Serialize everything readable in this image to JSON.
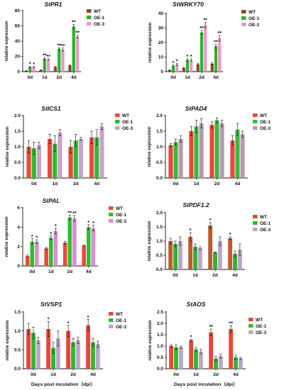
{
  "chart_data": [
    {
      "type": "bar",
      "title": "StPR1",
      "ylabel": "relative expression",
      "xlabel": "",
      "categories": [
        "0d",
        "1d",
        "2d",
        "4d"
      ],
      "ylim": [
        0,
        80
      ],
      "yticks": [
        "0",
        "20",
        "40",
        "60",
        "80"
      ],
      "legend": "right",
      "series": [
        {
          "name": "WT",
          "color": "#8b4a2b",
          "values": [
            1,
            2,
            6,
            8
          ],
          "errors": [
            0.5,
            0.5,
            0.8,
            0.8
          ],
          "marks": [
            "",
            "",
            "",
            ""
          ]
        },
        {
          "name": "OE-1",
          "color": "#2fb12f",
          "values": [
            6,
            17,
            30,
            59
          ],
          "errors": [
            1,
            1.5,
            1.5,
            3
          ],
          "marks": [
            "*",
            "**",
            "**",
            "**"
          ]
        },
        {
          "name": "OE-3",
          "color": "#e79ac0",
          "values": [
            6,
            16,
            29,
            46
          ],
          "errors": [
            0.8,
            1,
            2,
            2
          ],
          "marks": [
            "*",
            "**",
            "**",
            "**"
          ]
        }
      ]
    },
    {
      "type": "bar",
      "title": "StWRKY70",
      "ylabel": "relative expression",
      "xlabel": "",
      "categories": [
        "0d",
        "1d",
        "2d",
        "4d"
      ],
      "ylim": [
        0,
        40
      ],
      "yticks": [
        "0",
        "10",
        "20",
        "30",
        "40"
      ],
      "legend": "right",
      "series": [
        {
          "name": "WT",
          "color": "#8b4a2b",
          "values": [
            1,
            2.5,
            5,
            5.5
          ],
          "errors": [
            0.3,
            0.5,
            0.6,
            0.8
          ],
          "marks": [
            "",
            "",
            "",
            ""
          ]
        },
        {
          "name": "OE-1",
          "color": "#2fb12f",
          "values": [
            4,
            8,
            27,
            17.5
          ],
          "errors": [
            0.6,
            0.8,
            1.5,
            1.5
          ],
          "marks": [
            "*",
            "*",
            "**",
            "**"
          ]
        },
        {
          "name": "OE-3",
          "color": "#e79ac0",
          "values": [
            5,
            8,
            32,
            23
          ],
          "errors": [
            0.8,
            0.8,
            2,
            2
          ],
          "marks": [
            "*",
            "*",
            "**",
            "**"
          ]
        }
      ]
    },
    {
      "type": "bar",
      "title": "StICS1",
      "ylabel": "relative expression",
      "xlabel": "",
      "categories": [
        "0d",
        "1d",
        "2d",
        "4d"
      ],
      "ylim": [
        0,
        2
      ],
      "yticks": [
        "0.0",
        "0.5",
        "1.0",
        "1.5",
        "2.0"
      ],
      "legend": "right",
      "series": [
        {
          "name": "WT",
          "color": "#e84a3c",
          "values": [
            1.0,
            1.25,
            1.0,
            1.3
          ],
          "errors": [
            0.2,
            0.15,
            0.2,
            0.2
          ],
          "marks": [
            "",
            "",
            "",
            ""
          ]
        },
        {
          "name": "OE-1",
          "color": "#33b833",
          "values": [
            0.95,
            1.1,
            1.2,
            1.3
          ],
          "errors": [
            0.2,
            0.25,
            0.2,
            0.25
          ],
          "marks": [
            "",
            "",
            "",
            ""
          ]
        },
        {
          "name": "OE-3",
          "color": "#c9a3c9",
          "values": [
            1.05,
            1.45,
            1.25,
            1.65
          ],
          "errors": [
            0.1,
            0.1,
            0.05,
            0.1
          ],
          "marks": [
            "",
            "",
            "",
            ""
          ]
        }
      ]
    },
    {
      "type": "bar",
      "title": "StPAD4",
      "ylabel": "relative expression",
      "xlabel": "",
      "categories": [
        "0d",
        "1d",
        "2d",
        "4d"
      ],
      "ylim": [
        0,
        2
      ],
      "yticks": [
        "0.0",
        "0.5",
        "1.0",
        "1.5",
        "2.0"
      ],
      "legend": "right",
      "series": [
        {
          "name": "WT",
          "color": "#e8473a",
          "values": [
            1.05,
            1.5,
            1.7,
            1.2
          ],
          "errors": [
            0.05,
            0.15,
            0.1,
            0.15
          ],
          "marks": [
            "",
            "",
            "",
            ""
          ]
        },
        {
          "name": "OE-1",
          "color": "#3cb83c",
          "values": [
            1.15,
            1.65,
            1.85,
            1.55
          ],
          "errors": [
            0.1,
            0.2,
            0.08,
            0.2
          ],
          "marks": [
            "",
            "",
            "",
            ""
          ]
        },
        {
          "name": "OE-3",
          "color": "#b898b0",
          "values": [
            1.25,
            1.75,
            1.75,
            1.4
          ],
          "errors": [
            0.1,
            0.15,
            0.1,
            0.1
          ],
          "marks": [
            "",
            "",
            "",
            ""
          ]
        }
      ]
    },
    {
      "type": "bar",
      "title": "StPAL",
      "ylabel": "relative expression",
      "xlabel": "",
      "categories": [
        "0d",
        "1d",
        "2d",
        "4d"
      ],
      "ylim": [
        0,
        6
      ],
      "yticks": [
        "0",
        "2",
        "4",
        "6"
      ],
      "legend": "right",
      "series": [
        {
          "name": "WT",
          "color": "#e84a3c",
          "values": [
            1.0,
            1.8,
            2.4,
            2.1
          ],
          "errors": [
            0.1,
            0.1,
            0.15,
            0.05
          ],
          "marks": [
            "",
            "",
            "",
            ""
          ]
        },
        {
          "name": "OE-1",
          "color": "#2fc02f",
          "values": [
            2.5,
            2.9,
            5.0,
            4.0
          ],
          "errors": [
            0.3,
            0.2,
            0.25,
            0.25
          ],
          "marks": [
            "*",
            "*",
            "**",
            "*"
          ]
        },
        {
          "name": "OE-3",
          "color": "#d98fd0",
          "values": [
            2.5,
            3.6,
            4.9,
            3.9
          ],
          "errors": [
            0.2,
            0.3,
            0.3,
            0.3
          ],
          "marks": [
            "*",
            "*",
            "**",
            "*"
          ]
        }
      ]
    },
    {
      "type": "bar",
      "title": "StPDF1.2",
      "ylabel": "relative expression",
      "xlabel": "",
      "categories": [
        "0d",
        "1d",
        "2d",
        "4d"
      ],
      "ylim": [
        0,
        2
      ],
      "yticks": [
        "0.0",
        "0.5",
        "1.0",
        "1.5",
        "2.0"
      ],
      "legend": "right",
      "series": [
        {
          "name": "WT",
          "color": "#c05a2a",
          "values": [
            1.0,
            1.15,
            1.55,
            1.1
          ],
          "errors": [
            0.1,
            0.15,
            0.1,
            0.05
          ],
          "marks": [
            "",
            "*",
            "*",
            "*"
          ]
        },
        {
          "name": "OE-1",
          "color": "#35b035",
          "values": [
            0.9,
            0.8,
            0.6,
            0.55
          ],
          "errors": [
            0.1,
            0.1,
            0.02,
            0.1
          ],
          "marks": [
            "",
            "",
            "",
            ""
          ]
        },
        {
          "name": "OE-3",
          "color": "#b9a5c5",
          "values": [
            1.0,
            0.75,
            1.0,
            0.7
          ],
          "errors": [
            0.15,
            0.05,
            0.15,
            0.2
          ],
          "marks": [
            "",
            "",
            "",
            ""
          ]
        }
      ]
    },
    {
      "type": "bar",
      "title": "StVSP1",
      "ylabel": "relative expression",
      "xlabel": "Days post inculation（dpi）",
      "categories": [
        "0d",
        "1d",
        "2d",
        "4d"
      ],
      "ylim": [
        0,
        1.5
      ],
      "yticks": [
        "0.0",
        "0.5",
        "1.0",
        "1.5"
      ],
      "legend": "right",
      "series": [
        {
          "name": "WT",
          "color": "#e8453a",
          "values": [
            1.05,
            1.05,
            1.0,
            1.15
          ],
          "errors": [
            0.15,
            0.2,
            0.15,
            0.15
          ],
          "marks": [
            "",
            "*",
            "*",
            "*"
          ]
        },
        {
          "name": "OE-1",
          "color": "#35b535",
          "values": [
            0.95,
            0.55,
            0.7,
            0.7
          ],
          "errors": [
            0.15,
            0.15,
            0.1,
            0.1
          ],
          "marks": [
            "",
            "",
            "",
            ""
          ]
        },
        {
          "name": "OE-3",
          "color": "#b8a8c8",
          "values": [
            0.75,
            0.8,
            0.75,
            0.65
          ],
          "errors": [
            0.08,
            0.2,
            0.08,
            0.08
          ],
          "marks": [
            "",
            "",
            "",
            ""
          ]
        }
      ]
    },
    {
      "type": "bar",
      "title": "StAOS",
      "ylabel": "relative expression",
      "xlabel": "Days post inculation（dpi）",
      "categories": [
        "0d",
        "1d",
        "2d",
        "4d"
      ],
      "ylim": [
        0,
        2.5
      ],
      "yticks": [
        "0.0",
        "0.5",
        "1.0",
        "1.5",
        "2.0",
        "2.5"
      ],
      "legend": "right",
      "series": [
        {
          "name": "WT",
          "color": "#e8453a",
          "values": [
            1.0,
            1.25,
            1.6,
            1.75
          ],
          "errors": [
            0.05,
            0.05,
            0.15,
            0.15
          ],
          "marks": [
            "",
            "*",
            "**",
            "**"
          ]
        },
        {
          "name": "OE-1",
          "color": "#35b535",
          "values": [
            0.95,
            0.85,
            0.45,
            0.5
          ],
          "errors": [
            0.1,
            0.08,
            0.1,
            0.1
          ],
          "marks": [
            "",
            "",
            "",
            ""
          ]
        },
        {
          "name": "OE-3",
          "color": "#b8a8c8",
          "values": [
            0.95,
            0.75,
            0.55,
            0.45
          ],
          "errors": [
            0.05,
            0.1,
            0.08,
            0.05
          ],
          "marks": [
            "",
            "",
            "",
            ""
          ]
        }
      ]
    }
  ]
}
